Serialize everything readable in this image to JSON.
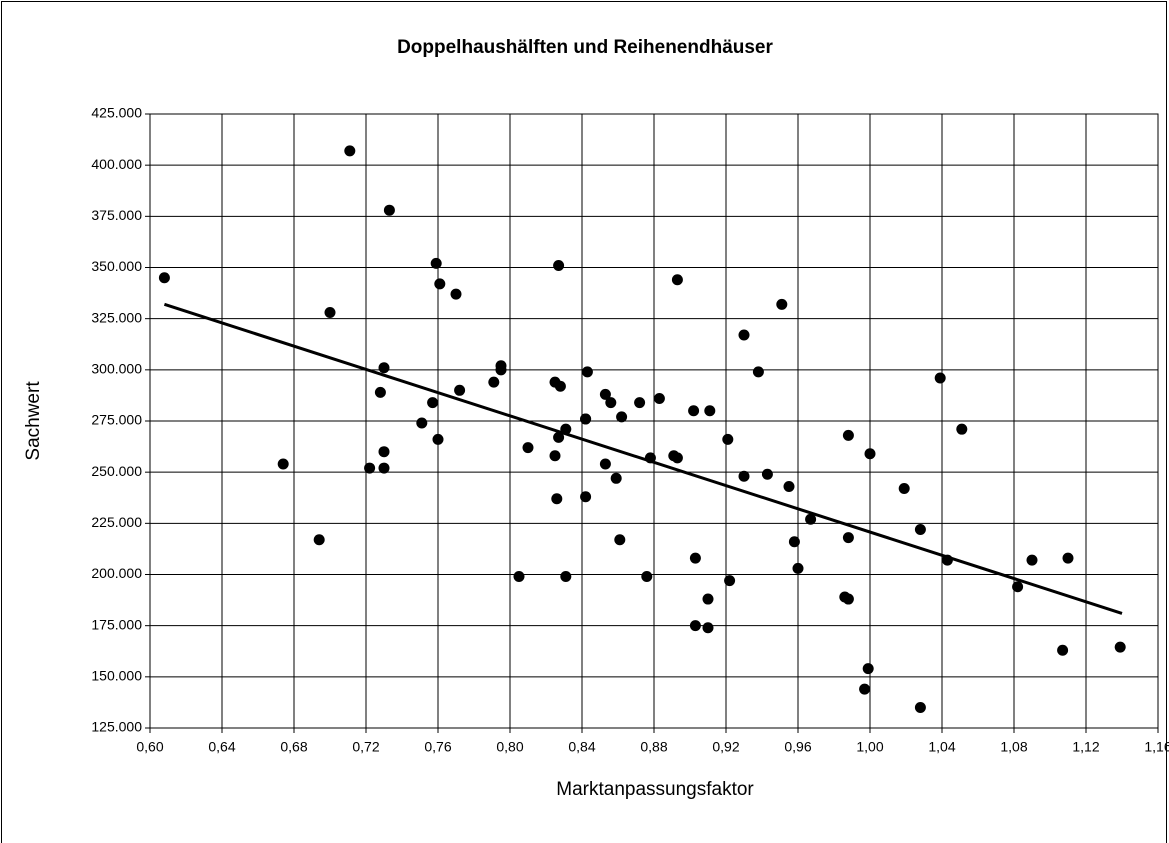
{
  "chart_data": {
    "type": "scatter",
    "title": "Doppelhaushälften und Reihenendhäuser",
    "xlabel": "Marktanpassungsfaktor",
    "ylabel": "Sachwert",
    "xlim": [
      0.6,
      1.16
    ],
    "ylim": [
      125000,
      425000
    ],
    "grid": true,
    "xticks": [
      {
        "value": 0.6,
        "label": "0,60"
      },
      {
        "value": 0.64,
        "label": "0,64"
      },
      {
        "value": 0.68,
        "label": "0,68"
      },
      {
        "value": 0.72,
        "label": "0,72"
      },
      {
        "value": 0.76,
        "label": "0,76"
      },
      {
        "value": 0.8,
        "label": "0,80"
      },
      {
        "value": 0.84,
        "label": "0,84"
      },
      {
        "value": 0.88,
        "label": "0,88"
      },
      {
        "value": 0.92,
        "label": "0,92"
      },
      {
        "value": 0.96,
        "label": "0,96"
      },
      {
        "value": 1.0,
        "label": "1,00"
      },
      {
        "value": 1.04,
        "label": "1,04"
      },
      {
        "value": 1.08,
        "label": "1,08"
      },
      {
        "value": 1.12,
        "label": "1,12"
      },
      {
        "value": 1.16,
        "label": "1,16"
      }
    ],
    "yticks": [
      {
        "value": 125000,
        "label": "125.000"
      },
      {
        "value": 150000,
        "label": "150.000"
      },
      {
        "value": 175000,
        "label": "175.000"
      },
      {
        "value": 200000,
        "label": "200.000"
      },
      {
        "value": 225000,
        "label": "225.000"
      },
      {
        "value": 250000,
        "label": "250.000"
      },
      {
        "value": 275000,
        "label": "275.000"
      },
      {
        "value": 300000,
        "label": "300.000"
      },
      {
        "value": 325000,
        "label": "325.000"
      },
      {
        "value": 350000,
        "label": "350.000"
      },
      {
        "value": 375000,
        "label": "375.000"
      },
      {
        "value": 400000,
        "label": "400.000"
      },
      {
        "value": 425000,
        "label": "425.000"
      }
    ],
    "series": [
      {
        "type": "scatter",
        "color": "#000000",
        "x": [
          0.608,
          0.674,
          0.694,
          0.7,
          0.711,
          0.722,
          0.728,
          0.73,
          0.73,
          0.73,
          0.733,
          0.751,
          0.757,
          0.76,
          0.759,
          0.761,
          0.77,
          0.772,
          0.791,
          0.795,
          0.795,
          0.805,
          0.81,
          0.825,
          0.825,
          0.828,
          0.827,
          0.826,
          0.827,
          0.831,
          0.831,
          0.842,
          0.843,
          0.842,
          0.842,
          0.853,
          0.853,
          0.856,
          0.859,
          0.861,
          0.862,
          0.872,
          0.876,
          0.878,
          0.883,
          0.891,
          0.893,
          0.893,
          0.902,
          0.903,
          0.903,
          0.911,
          0.91,
          0.91,
          0.921,
          0.922,
          0.93,
          0.93,
          0.938,
          0.943,
          0.951,
          0.955,
          0.958,
          0.96,
          0.967,
          0.988,
          0.988,
          0.986,
          0.988,
          1.0,
          0.999,
          0.997,
          1.019,
          1.028,
          1.028,
          1.039,
          1.043,
          1.051,
          1.082,
          1.09,
          1.11,
          1.107,
          1.139
        ],
        "values": [
          345000,
          254000,
          217000,
          328000,
          407000,
          252000,
          289000,
          301000,
          260000,
          252000,
          378000,
          274000,
          284000,
          266000,
          352000,
          342000,
          337000,
          290000,
          294000,
          302000,
          300000,
          199000,
          262000,
          258000,
          294000,
          292000,
          351000,
          237000,
          267000,
          271000,
          199000,
          276000,
          299000,
          276000,
          238000,
          288000,
          254000,
          284000,
          247000,
          217000,
          277000,
          284000,
          199000,
          257000,
          286000,
          258000,
          257000,
          344000,
          280000,
          208000,
          175000,
          280000,
          188000,
          174000,
          266000,
          197000,
          317000,
          248000,
          299000,
          249000,
          332000,
          243000,
          216000,
          203000,
          227000,
          268000,
          218000,
          189000,
          188000,
          259000,
          154000,
          144000,
          242000,
          222000,
          135000,
          296000,
          207000,
          271000,
          194000,
          207000,
          208000,
          163000,
          164500
        ]
      },
      {
        "type": "line",
        "color": "#000000",
        "x": [
          0.608,
          1.14
        ],
        "values": [
          332000,
          181000
        ]
      }
    ]
  }
}
